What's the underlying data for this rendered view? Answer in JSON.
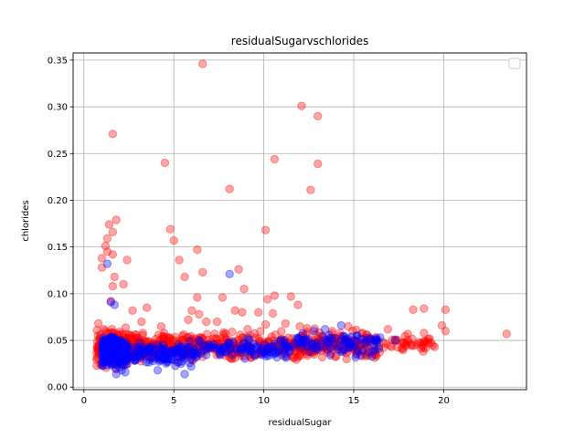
{
  "chart_data": {
    "type": "scatter",
    "title": "residualSugarvschlorides",
    "xlabel": "residualSugar",
    "ylabel": "chlorides",
    "xlim": [
      -0.6,
      24.6
    ],
    "ylim": [
      -0.0027,
      0.3577
    ],
    "xticks": [
      0,
      5,
      10,
      15,
      20
    ],
    "yticks": [
      0.0,
      0.05,
      0.1,
      0.15,
      0.2,
      0.25,
      0.3,
      0.35
    ],
    "xtick_labels": [
      "0",
      "5",
      "10",
      "15",
      "20"
    ],
    "ytick_labels": [
      "0.00",
      "0.05",
      "0.10",
      "0.15",
      "0.20",
      "0.25",
      "0.30",
      "0.35"
    ],
    "grid": true,
    "legend": {
      "placement": "upper right",
      "entries": []
    },
    "point_alpha": 0.35,
    "series": [
      {
        "color": "#ff0000",
        "explicit_points": [
          [
            6.6,
            0.346
          ],
          [
            12.1,
            0.301
          ],
          [
            13.0,
            0.29
          ],
          [
            1.6,
            0.271
          ],
          [
            10.6,
            0.244
          ],
          [
            4.5,
            0.24
          ],
          [
            13.0,
            0.239
          ],
          [
            8.1,
            0.212
          ],
          [
            12.6,
            0.211
          ],
          [
            1.8,
            0.179
          ],
          [
            1.4,
            0.174
          ],
          [
            4.8,
            0.169
          ],
          [
            10.1,
            0.168
          ],
          [
            1.6,
            0.166
          ],
          [
            1.3,
            0.159
          ],
          [
            5.0,
            0.157
          ],
          [
            1.2,
            0.151
          ],
          [
            6.3,
            0.147
          ],
          [
            1.3,
            0.145
          ],
          [
            1.6,
            0.142
          ],
          [
            1.0,
            0.138
          ],
          [
            2.4,
            0.136
          ],
          [
            5.3,
            0.136
          ],
          [
            1.0,
            0.128
          ],
          [
            8.6,
            0.126
          ],
          [
            6.6,
            0.123
          ],
          [
            5.6,
            0.118
          ],
          [
            1.7,
            0.118
          ],
          [
            2.2,
            0.11
          ],
          [
            1.6,
            0.108
          ],
          [
            8.9,
            0.105
          ],
          [
            10.6,
            0.098
          ],
          [
            11.5,
            0.097
          ],
          [
            6.3,
            0.096
          ],
          [
            7.7,
            0.096
          ],
          [
            10.2,
            0.094
          ],
          [
            1.5,
            0.092
          ],
          [
            11.9,
            0.088
          ],
          [
            3.5,
            0.085
          ],
          [
            6.0,
            0.082
          ],
          [
            8.4,
            0.082
          ],
          [
            18.9,
            0.084
          ],
          [
            20.1,
            0.083
          ],
          [
            18.3,
            0.083
          ],
          [
            2.7,
            0.082
          ],
          [
            8.8,
            0.08
          ],
          [
            9.7,
            0.08
          ],
          [
            10.5,
            0.079
          ],
          [
            6.4,
            0.078
          ],
          [
            5.8,
            0.072
          ],
          [
            3.2,
            0.07
          ],
          [
            6.8,
            0.07
          ],
          [
            7.4,
            0.07
          ],
          [
            10.1,
            0.067
          ],
          [
            11.2,
            0.068
          ],
          [
            12.0,
            0.065
          ],
          [
            4.3,
            0.065
          ],
          [
            16.9,
            0.062
          ],
          [
            19.9,
            0.066
          ],
          [
            20.1,
            0.06
          ],
          [
            18.9,
            0.058
          ],
          [
            18.0,
            0.057
          ],
          [
            19.2,
            0.052
          ],
          [
            23.5,
            0.057
          ],
          [
            19.5,
            0.043
          ],
          [
            18.6,
            0.048
          ],
          [
            0.8,
            0.068
          ],
          [
            1.1,
            0.062
          ],
          [
            9.1,
            0.062
          ],
          [
            14.7,
            0.065
          ],
          [
            13.8,
            0.06
          ],
          [
            12.4,
            0.063
          ]
        ],
        "clusters": [
          {
            "x_range": [
              0.7,
              3.0
            ],
            "y_range": [
              0.018,
              0.068
            ],
            "count": 260,
            "seed": 11
          },
          {
            "x_range": [
              3.0,
              9.0
            ],
            "y_range": [
              0.022,
              0.066
            ],
            "count": 240,
            "seed": 12
          },
          {
            "x_range": [
              9.0,
              16.5
            ],
            "y_range": [
              0.026,
              0.064
            ],
            "count": 260,
            "seed": 13
          },
          {
            "x_range": [
              16.5,
              19.6
            ],
            "y_range": [
              0.034,
              0.058
            ],
            "count": 40,
            "seed": 14
          }
        ]
      },
      {
        "color": "#0000ff",
        "explicit_points": [
          [
            1.3,
            0.132
          ],
          [
            8.1,
            0.121
          ],
          [
            1.5,
            0.091
          ],
          [
            1.7,
            0.088
          ],
          [
            2.3,
            0.016
          ],
          [
            5.6,
            0.014
          ],
          [
            1.8,
            0.014
          ],
          [
            2.1,
            0.018
          ],
          [
            4.1,
            0.018
          ],
          [
            14.3,
            0.066
          ],
          [
            12.8,
            0.06
          ],
          [
            13.4,
            0.062
          ],
          [
            17.3,
            0.05
          ],
          [
            15.1,
            0.032
          ],
          [
            13.7,
            0.034
          ]
        ],
        "clusters": [
          {
            "x_range": [
              1.0,
              2.4
            ],
            "y_range": [
              0.018,
              0.058
            ],
            "count": 340,
            "seed": 21
          },
          {
            "x_range": [
              2.4,
              6.0
            ],
            "y_range": [
              0.02,
              0.052
            ],
            "count": 130,
            "seed": 22
          },
          {
            "x_range": [
              6.0,
              11.5
            ],
            "y_range": [
              0.026,
              0.056
            ],
            "count": 110,
            "seed": 23
          },
          {
            "x_range": [
              11.5,
              16.5
            ],
            "y_range": [
              0.032,
              0.062
            ],
            "count": 90,
            "seed": 24
          }
        ]
      }
    ]
  }
}
